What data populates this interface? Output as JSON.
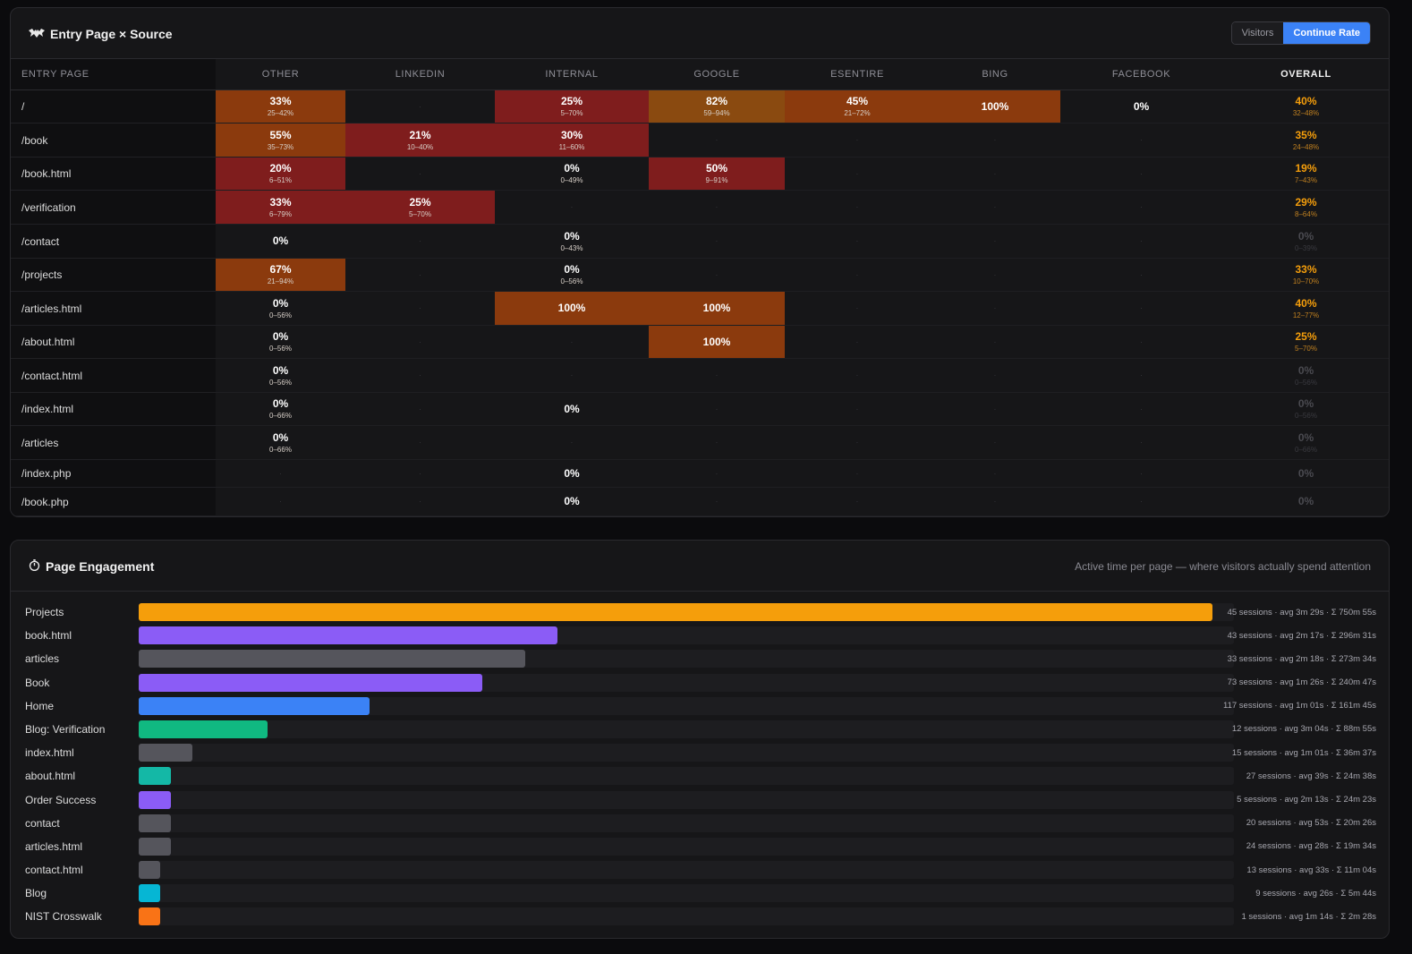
{
  "entry_panel": {
    "title": "Entry Page × Source",
    "icon": "bat-icon",
    "toggle": [
      "Visitors",
      "Continue Rate"
    ],
    "toggle_active": 1,
    "row_header": "ENTRY PAGE",
    "columns": [
      "OTHER",
      "LINKEDIN",
      "INTERNAL",
      "GOOGLE",
      "ESENTIRE",
      "BING",
      "FACEBOOK",
      "OVERALL"
    ],
    "rows": [
      {
        "page": "/",
        "cells": [
          {
            "v": "33%",
            "ci": "25–42%",
            "bg": "org"
          },
          null,
          {
            "v": "25%",
            "ci": "5–70%",
            "bg": "red"
          },
          {
            "v": "82%",
            "ci": "59–94%",
            "bg": "amb"
          },
          {
            "v": "45%",
            "ci": "21–72%",
            "bg": "org"
          },
          {
            "v": "100%",
            "ci": "",
            "bg": "org"
          },
          {
            "v": "0%",
            "ci": "",
            "bg": ""
          },
          {
            "v": "40%",
            "ci": "32–48%",
            "ov": true
          }
        ]
      },
      {
        "page": "/book",
        "cells": [
          {
            "v": "55%",
            "ci": "35–73%",
            "bg": "org"
          },
          {
            "v": "21%",
            "ci": "10–40%",
            "bg": "red"
          },
          {
            "v": "30%",
            "ci": "11–60%",
            "bg": "red"
          },
          null,
          null,
          null,
          null,
          {
            "v": "35%",
            "ci": "24–48%",
            "ov": true
          }
        ]
      },
      {
        "page": "/book.html",
        "cells": [
          {
            "v": "20%",
            "ci": "6–51%",
            "bg": "red"
          },
          null,
          {
            "v": "0%",
            "ci": "0–49%",
            "bg": ""
          },
          {
            "v": "50%",
            "ci": "9–91%",
            "bg": "red"
          },
          null,
          null,
          null,
          {
            "v": "19%",
            "ci": "7–43%",
            "ov": true
          }
        ]
      },
      {
        "page": "/verification",
        "cells": [
          {
            "v": "33%",
            "ci": "6–79%",
            "bg": "red"
          },
          {
            "v": "25%",
            "ci": "5–70%",
            "bg": "red"
          },
          null,
          null,
          null,
          null,
          null,
          {
            "v": "29%",
            "ci": "8–64%",
            "ov": true
          }
        ]
      },
      {
        "page": "/contact",
        "cells": [
          {
            "v": "0%",
            "ci": "",
            "bg": ""
          },
          null,
          {
            "v": "0%",
            "ci": "0–43%",
            "bg": ""
          },
          null,
          null,
          null,
          null,
          {
            "v": "0%",
            "ci": "0–39%",
            "ov": true,
            "dim": true
          }
        ]
      },
      {
        "page": "/projects",
        "cells": [
          {
            "v": "67%",
            "ci": "21–94%",
            "bg": "org"
          },
          null,
          {
            "v": "0%",
            "ci": "0–56%",
            "bg": ""
          },
          null,
          null,
          null,
          null,
          {
            "v": "33%",
            "ci": "10–70%",
            "ov": true
          }
        ]
      },
      {
        "page": "/articles.html",
        "cells": [
          {
            "v": "0%",
            "ci": "0–56%",
            "bg": ""
          },
          null,
          {
            "v": "100%",
            "ci": "",
            "bg": "org"
          },
          {
            "v": "100%",
            "ci": "",
            "bg": "org"
          },
          null,
          null,
          null,
          {
            "v": "40%",
            "ci": "12–77%",
            "ov": true
          }
        ]
      },
      {
        "page": "/about.html",
        "cells": [
          {
            "v": "0%",
            "ci": "0–56%",
            "bg": ""
          },
          null,
          null,
          {
            "v": "100%",
            "ci": "",
            "bg": "org"
          },
          null,
          null,
          null,
          {
            "v": "25%",
            "ci": "5–70%",
            "ov": true
          }
        ]
      },
      {
        "page": "/contact.html",
        "cells": [
          {
            "v": "0%",
            "ci": "0–56%",
            "bg": ""
          },
          null,
          null,
          null,
          null,
          null,
          null,
          {
            "v": "0%",
            "ci": "0–56%",
            "ov": true,
            "dim": true
          }
        ]
      },
      {
        "page": "/index.html",
        "cells": [
          {
            "v": "0%",
            "ci": "0–66%",
            "bg": ""
          },
          null,
          {
            "v": "0%",
            "ci": "",
            "bg": ""
          },
          null,
          null,
          null,
          null,
          {
            "v": "0%",
            "ci": "0–56%",
            "ov": true,
            "dim": true
          }
        ]
      },
      {
        "page": "/articles",
        "cells": [
          {
            "v": "0%",
            "ci": "0–66%",
            "bg": ""
          },
          null,
          null,
          null,
          null,
          null,
          null,
          {
            "v": "0%",
            "ci": "0–66%",
            "ov": true,
            "dim": true
          }
        ]
      },
      {
        "page": "/index.php",
        "cells": [
          null,
          null,
          {
            "v": "0%",
            "ci": "",
            "bg": ""
          },
          null,
          null,
          null,
          null,
          {
            "v": "0%",
            "ci": "",
            "ov": true,
            "dim": true
          }
        ]
      },
      {
        "page": "/book.php",
        "cells": [
          null,
          null,
          {
            "v": "0%",
            "ci": "",
            "bg": ""
          },
          null,
          null,
          null,
          null,
          {
            "v": "0%",
            "ci": "",
            "ov": true,
            "dim": true
          }
        ]
      }
    ],
    "empty_mark": "·"
  },
  "engage_panel": {
    "title": "Page Engagement",
    "icon": "stopwatch-icon",
    "subtitle": "Active time per page — where visitors actually spend attention",
    "rows": [
      {
        "label": "Projects",
        "fraction": 1.0,
        "color": "#f59e0b",
        "stat": "45 sessions · avg 3m 29s · Σ 750m 55s"
      },
      {
        "label": "book.html",
        "fraction": 0.39,
        "color": "#8b5cf6",
        "stat": "43 sessions · avg 2m 17s · Σ 296m 31s"
      },
      {
        "label": "articles",
        "fraction": 0.36,
        "color": "#55555c",
        "stat": "33 sessions · avg 2m 18s · Σ 273m 34s"
      },
      {
        "label": "Book",
        "fraction": 0.32,
        "color": "#8b5cf6",
        "stat": "73 sessions · avg 1m 26s · Σ 240m 47s"
      },
      {
        "label": "Home",
        "fraction": 0.215,
        "color": "#3b82f6",
        "stat": "117 sessions · avg 1m 01s · Σ 161m 45s"
      },
      {
        "label": "Blog: Verification",
        "fraction": 0.12,
        "color": "#10b981",
        "stat": "12 sessions · avg 3m 04s · Σ 88m 55s"
      },
      {
        "label": "index.html",
        "fraction": 0.05,
        "color": "#55555c",
        "stat": "15 sessions · avg 1m 01s · Σ 36m 37s"
      },
      {
        "label": "about.html",
        "fraction": 0.03,
        "color": "#14b8a6",
        "stat": "27 sessions · avg 39s · Σ 24m 38s"
      },
      {
        "label": "Order Success",
        "fraction": 0.03,
        "color": "#8b5cf6",
        "stat": "5 sessions · avg 2m 13s · Σ 24m 23s"
      },
      {
        "label": "contact",
        "fraction": 0.03,
        "color": "#55555c",
        "stat": "20 sessions · avg 53s · Σ 20m 26s"
      },
      {
        "label": "articles.html",
        "fraction": 0.03,
        "color": "#55555c",
        "stat": "24 sessions · avg 28s · Σ 19m 34s"
      },
      {
        "label": "contact.html",
        "fraction": 0.02,
        "color": "#55555c",
        "stat": "13 sessions · avg 33s · Σ 11m 04s"
      },
      {
        "label": "Blog",
        "fraction": 0.02,
        "color": "#06b6d4",
        "stat": "9 sessions · avg 26s · Σ 5m 44s"
      },
      {
        "label": "NIST Crosswalk",
        "fraction": 0.02,
        "color": "#f97316",
        "stat": "1 sessions · avg 1m 14s · Σ 2m 28s"
      }
    ]
  }
}
